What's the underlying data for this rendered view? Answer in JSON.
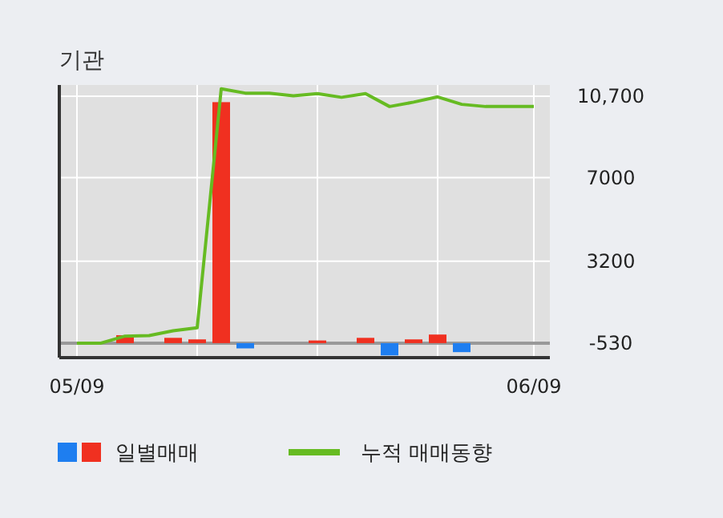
{
  "chart_data": {
    "type": "bar",
    "title": "기관",
    "categories": [
      "05/09",
      null,
      null,
      null,
      null,
      null,
      null,
      null,
      null,
      null,
      null,
      null,
      null,
      null,
      null,
      null,
      null,
      null,
      null,
      "06/09"
    ],
    "series": [
      {
        "name": "일별매매",
        "colors": [
          "#f03020",
          "#f03020",
          "#f03020",
          "#f03020",
          "#f03020",
          "#f03020",
          "#f03020",
          "#1e7ef0",
          "#f03020",
          "#f03020",
          "#f03020",
          "#f03020",
          "#f03020",
          "#1e7ef0",
          "#f03020",
          "#f03020",
          "#1e7ef0",
          "#f03020",
          "#f03020",
          "#f03020"
        ],
        "values": [
          null,
          null,
          360,
          null,
          240,
          170,
          10960,
          -240,
          null,
          null,
          120,
          null,
          240,
          -560,
          170,
          390,
          -410,
          null,
          null,
          null
        ],
        "base": [
          null,
          null,
          -530,
          null,
          -530,
          -530,
          -530,
          -530,
          null,
          null,
          -530,
          null,
          -530,
          -530,
          -530,
          -530,
          -530,
          null,
          null,
          null
        ]
      },
      {
        "name": "누적 매매동향",
        "type": "line",
        "color": "#66bb22",
        "values": [
          -530,
          -530,
          -210,
          -190,
          30,
          170,
          11040,
          10840,
          10840,
          10720,
          10820,
          10650,
          10820,
          10230,
          10430,
          10670,
          10330,
          10230,
          10230,
          10230
        ]
      }
    ],
    "ylim": [
      -1190,
      11210
    ],
    "yticks": [
      {
        "value": 10700,
        "label": "10,700"
      },
      {
        "value": 7000,
        "label": "7000"
      },
      {
        "value": 3200,
        "label": "3200"
      },
      -530
    ],
    "ref_lines": [
      {
        "axis": "y",
        "value": -530,
        "color": "#999999"
      }
    ],
    "grid": true,
    "legend": "bottom"
  }
}
